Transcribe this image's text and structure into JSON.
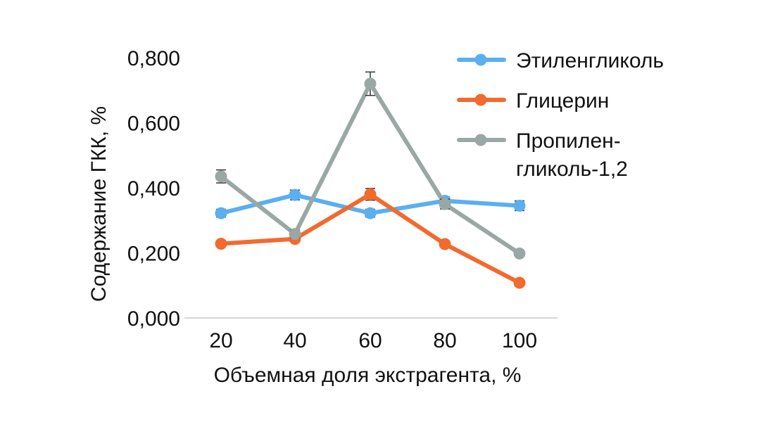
{
  "chart_data": {
    "type": "line",
    "title": "",
    "xlabel": "Объемная доля экстрагента, %",
    "ylabel": "Содержание ГКК, %",
    "categories": [
      "20",
      "40",
      "60",
      "80",
      "100"
    ],
    "ylim": [
      0,
      0.8
    ],
    "y_ticks": [
      0,
      0.2,
      0.4,
      0.6,
      0.8
    ],
    "y_tick_labels": [
      "0,000",
      "0,200",
      "0,400",
      "0,600",
      "0,800"
    ],
    "grid": false,
    "legend_position": "top-right",
    "series": [
      {
        "name_lines": [
          "Этиленгликоль"
        ],
        "color": "#5aaff0",
        "values": [
          0.322,
          0.378,
          0.322,
          0.36,
          0.345
        ],
        "errors": [
          0.012,
          0.015,
          0.012,
          0.012,
          0.015
        ]
      },
      {
        "name_lines": [
          "Глицерин"
        ],
        "color": "#f26a2e",
        "values": [
          0.228,
          0.243,
          0.38,
          0.227,
          0.108
        ],
        "errors": [
          0.006,
          0.006,
          0.018,
          0.006,
          0.006
        ]
      },
      {
        "name_lines": [
          "Пропилен-",
          "гликоль-1,2"
        ],
        "color": "#9aa7a5",
        "values": [
          0.435,
          0.258,
          0.72,
          0.35,
          0.198
        ],
        "errors": [
          0.02,
          0.012,
          0.036,
          0.015,
          0.006
        ]
      }
    ]
  }
}
